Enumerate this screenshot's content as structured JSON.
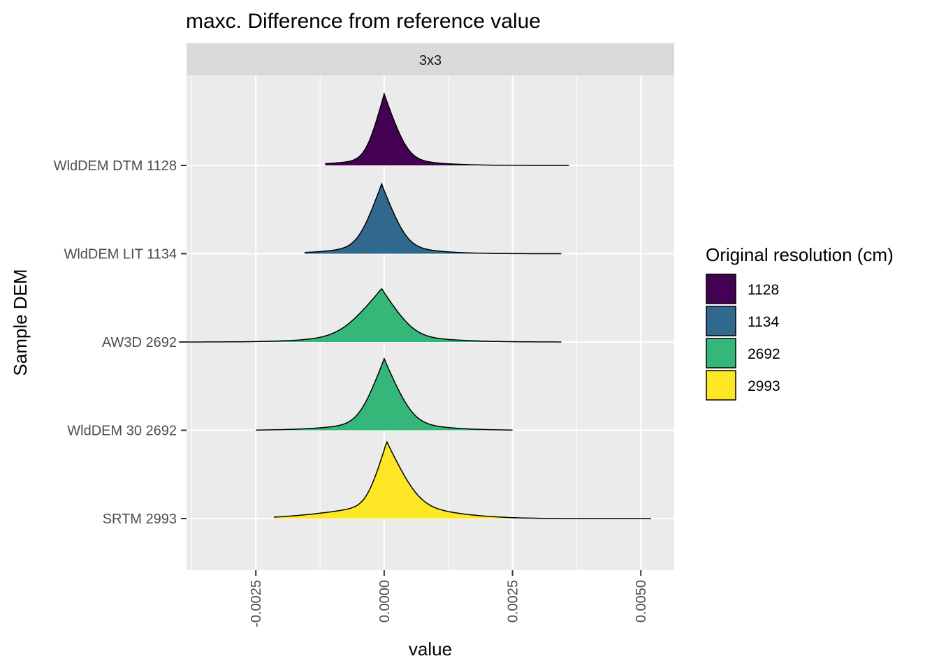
{
  "chart_data": {
    "type": "ridgeline",
    "title": "maxc. Difference from reference value",
    "facet": "3x3",
    "xlabel": "value",
    "ylabel": "Sample DEM",
    "xlim": [
      -0.00385,
      0.00565
    ],
    "x_ticks": [
      "-0.0025",
      "0.0000",
      "0.0025",
      "0.0050"
    ],
    "x_tick_values": [
      -0.0025,
      0.0,
      0.0025,
      0.005
    ],
    "grid": true,
    "legend": {
      "title": "Original resolution (cm)",
      "position": "right",
      "entries": [
        {
          "label": "1128",
          "color": "#440154"
        },
        {
          "label": "1134",
          "color": "#31688E"
        },
        {
          "label": "2692",
          "color": "#35B779"
        },
        {
          "label": "2993",
          "color": "#FDE725"
        }
      ]
    },
    "series": [
      {
        "name": "WldDEM DTM 1128",
        "legend": "1128",
        "color": "#440154",
        "range": [
          -0.00115,
          0.0036
        ],
        "peak": 0.0,
        "height": 0.79,
        "sd_left": 0.00022,
        "sd_right": 0.00028,
        "tail": 0.055,
        "tail_sd": 0.0009
      },
      {
        "name": "WldDEM LIT 1134",
        "legend": "1134",
        "color": "#31688E",
        "range": [
          -0.00155,
          0.00345
        ],
        "peak": -5e-05,
        "height": 0.77,
        "sd_left": 0.00028,
        "sd_right": 0.0003,
        "tail": 0.07,
        "tail_sd": 0.0009
      },
      {
        "name": "AW3D 2692",
        "legend": "2692",
        "color": "#35B779",
        "range": [
          -0.004,
          0.00345
        ],
        "peak": -5e-05,
        "height": 0.59,
        "sd_left": 0.00048,
        "sd_right": 0.00038,
        "tail": 0.08,
        "tail_sd": 0.0011
      },
      {
        "name": "WldDEM 30 2692",
        "legend": "2692",
        "color": "#35B779",
        "range": [
          -0.0025,
          0.0025
        ],
        "peak": 0.0,
        "height": 0.79,
        "sd_left": 0.0003,
        "sd_right": 0.00034,
        "tail": 0.07,
        "tail_sd": 0.001
      },
      {
        "name": "SRTM 2993",
        "legend": "2993",
        "color": "#FDE725",
        "range": [
          -0.00215,
          0.0052
        ],
        "peak": 5e-05,
        "height": 0.85,
        "sd_left": 0.00024,
        "sd_right": 0.00038,
        "tail": 0.16,
        "tail_sd": 0.0011
      }
    ]
  }
}
